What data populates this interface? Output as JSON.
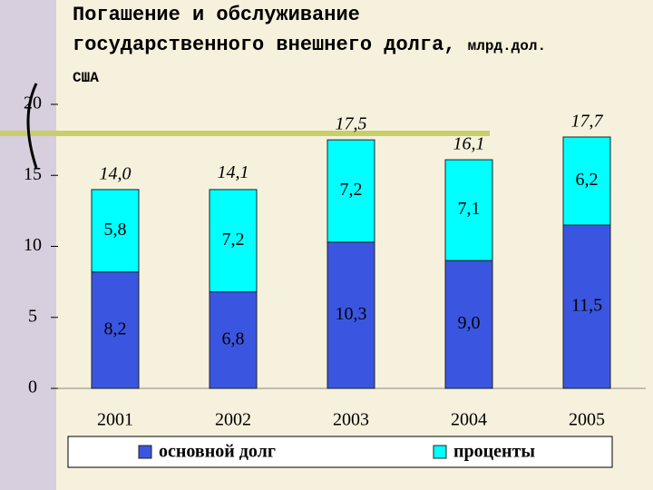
{
  "chart_data": {
    "type": "stacked_bar",
    "title": "Погашение и обслуживание государственного внешнего долга,",
    "title_unit": "млрд.дол. США",
    "categories": [
      "2001",
      "2002",
      "2003",
      "2004",
      "2005"
    ],
    "series": [
      {
        "name": "основной долг",
        "color": "#3a56e0",
        "values": [
          8.2,
          6.8,
          10.3,
          9.0,
          11.5
        ],
        "value_labels": [
          "8,2",
          "6,8",
          "10,3",
          "9,0",
          "11,5"
        ]
      },
      {
        "name": "проценты",
        "color": "#00ffff",
        "values": [
          5.8,
          7.2,
          7.2,
          7.1,
          6.2
        ],
        "value_labels": [
          "5,8",
          "7,2",
          "7,2",
          "7,1",
          "6,2"
        ]
      }
    ],
    "totals": [
      14.0,
      14.1,
      17.5,
      16.1,
      17.7
    ],
    "total_labels": [
      "14,0",
      "14,1",
      "17,5",
      "16,1",
      "17,7"
    ],
    "ylim": [
      0,
      20
    ],
    "yticks": [
      0,
      5,
      10,
      15,
      20
    ],
    "grid": false,
    "legend": "bottom"
  }
}
